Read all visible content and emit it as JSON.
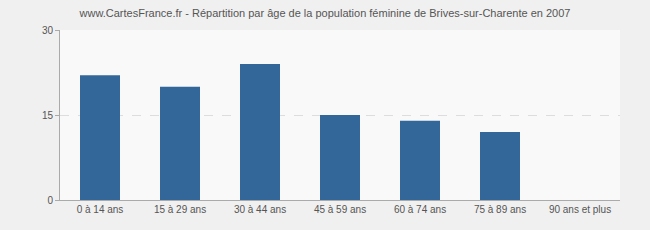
{
  "chart_data": {
    "type": "bar",
    "title": "www.CartesFrance.fr - Répartition par âge de la population féminine de Brives-sur-Charente en 2007",
    "categories": [
      "0 à 14 ans",
      "15 à 29 ans",
      "30 à 44 ans",
      "45 à 59 ans",
      "60 à 74 ans",
      "75 à 89 ans",
      "90 ans et plus"
    ],
    "values": [
      22,
      20,
      24,
      15,
      14,
      12,
      0
    ],
    "color": "#336699",
    "ylim": [
      0,
      30
    ],
    "yticks": [
      0,
      15,
      30
    ],
    "grid": true
  }
}
